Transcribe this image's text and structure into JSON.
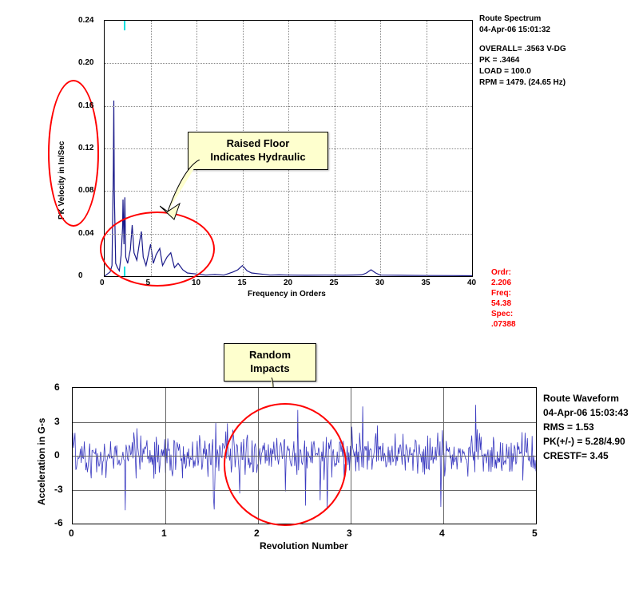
{
  "spectrum": {
    "type": "line",
    "meta": {
      "title": "Route Spectrum",
      "timestamp": "04-Apr-06  15:01:32",
      "overall": "OVERALL=  .3563  V-DG",
      "pk": "PK = .3464",
      "load": "LOAD = 100.0",
      "rpm": "RPM = 1479. (24.65 Hz)"
    },
    "cursor": {
      "ordr_label": "Ordr:",
      "ordr": "2.206",
      "freq_label": "Freq:",
      "freq": "54.38",
      "spec_label": "Spec:",
      "spec": ".07388"
    },
    "callout": "Raised Floor\nIndicates Hydraulic",
    "xlabel": "Frequency in Orders",
    "ylabel": "PK Velocity in In/Sec",
    "xlim": [
      0,
      40
    ],
    "ylim": [
      0,
      0.24
    ],
    "xtick_step": 5,
    "ytick_step": 0.04,
    "xticks": [
      "0",
      "5",
      "10",
      "15",
      "20",
      "25",
      "30",
      "35",
      "40"
    ],
    "yticks": [
      "0",
      "0.04",
      "0.08",
      "0.12",
      "0.16",
      "0.20",
      "0.24"
    ],
    "line_color": "#1a1a8a",
    "background_color": "#ffffff",
    "grid_color": "#888888",
    "cursor_mark_x": 2.2,
    "series": [
      [
        0,
        0
      ],
      [
        0.3,
        0.002
      ],
      [
        0.6,
        0.004
      ],
      [
        0.8,
        0.01
      ],
      [
        0.95,
        0.1
      ],
      [
        1.0,
        0.165
      ],
      [
        1.05,
        0.08
      ],
      [
        1.2,
        0.012
      ],
      [
        1.4,
        0.008
      ],
      [
        1.6,
        0.005
      ],
      [
        1.8,
        0.02
      ],
      [
        1.95,
        0.045
      ],
      [
        2.0,
        0.072
      ],
      [
        2.1,
        0.03
      ],
      [
        2.2,
        0.074
      ],
      [
        2.3,
        0.018
      ],
      [
        2.5,
        0.012
      ],
      [
        2.8,
        0.025
      ],
      [
        3.0,
        0.048
      ],
      [
        3.2,
        0.022
      ],
      [
        3.5,
        0.015
      ],
      [
        3.8,
        0.032
      ],
      [
        4.0,
        0.042
      ],
      [
        4.2,
        0.018
      ],
      [
        4.5,
        0.01
      ],
      [
        5.0,
        0.03
      ],
      [
        5.3,
        0.012
      ],
      [
        5.6,
        0.02
      ],
      [
        6.0,
        0.026
      ],
      [
        6.3,
        0.01
      ],
      [
        6.8,
        0.018
      ],
      [
        7.2,
        0.022
      ],
      [
        7.6,
        0.008
      ],
      [
        8.0,
        0.012
      ],
      [
        8.5,
        0.006
      ],
      [
        9.0,
        0.003
      ],
      [
        10,
        0.002
      ],
      [
        11,
        0.001
      ],
      [
        12,
        0.0015
      ],
      [
        13,
        0.001
      ],
      [
        14,
        0.004
      ],
      [
        14.5,
        0.006
      ],
      [
        15,
        0.01
      ],
      [
        15.5,
        0.005
      ],
      [
        16,
        0.003
      ],
      [
        17,
        0.002
      ],
      [
        18,
        0.001
      ],
      [
        19,
        0.0012
      ],
      [
        20,
        0.001
      ],
      [
        22,
        0.0008
      ],
      [
        24,
        0.001
      ],
      [
        26,
        0.0008
      ],
      [
        28,
        0.0012
      ],
      [
        28.5,
        0.003
      ],
      [
        29,
        0.006
      ],
      [
        29.5,
        0.003
      ],
      [
        30,
        0.001
      ],
      [
        32,
        0.0008
      ],
      [
        35,
        0.0006
      ],
      [
        38,
        0.0005
      ],
      [
        40,
        0.0004
      ]
    ]
  },
  "waveform": {
    "type": "line",
    "callout": "Random\nImpacts",
    "meta": {
      "title": "Route Waveform",
      "timestamp": "04-Apr-06  15:03:43",
      "rms": "RMS =  1.53",
      "pk": "PK(+/-) = 5.28/4.90",
      "crest": "CRESTF= 3.45"
    },
    "xlabel": "Revolution Number",
    "ylabel": "Acceleration in G-s",
    "xlim": [
      0,
      5
    ],
    "ylim": [
      -6,
      6
    ],
    "xtick_step": 1,
    "ytick_step": 3,
    "xticks": [
      "0",
      "1",
      "2",
      "3",
      "4",
      "5"
    ],
    "yticks": [
      "-6",
      "-3",
      "0",
      "3",
      "6"
    ],
    "line_color": "#3a3ac0",
    "background_color": "#ffffff",
    "grid_color": "#666666",
    "series_seed": 42,
    "series_len": 600,
    "series_amp": 5.0
  }
}
